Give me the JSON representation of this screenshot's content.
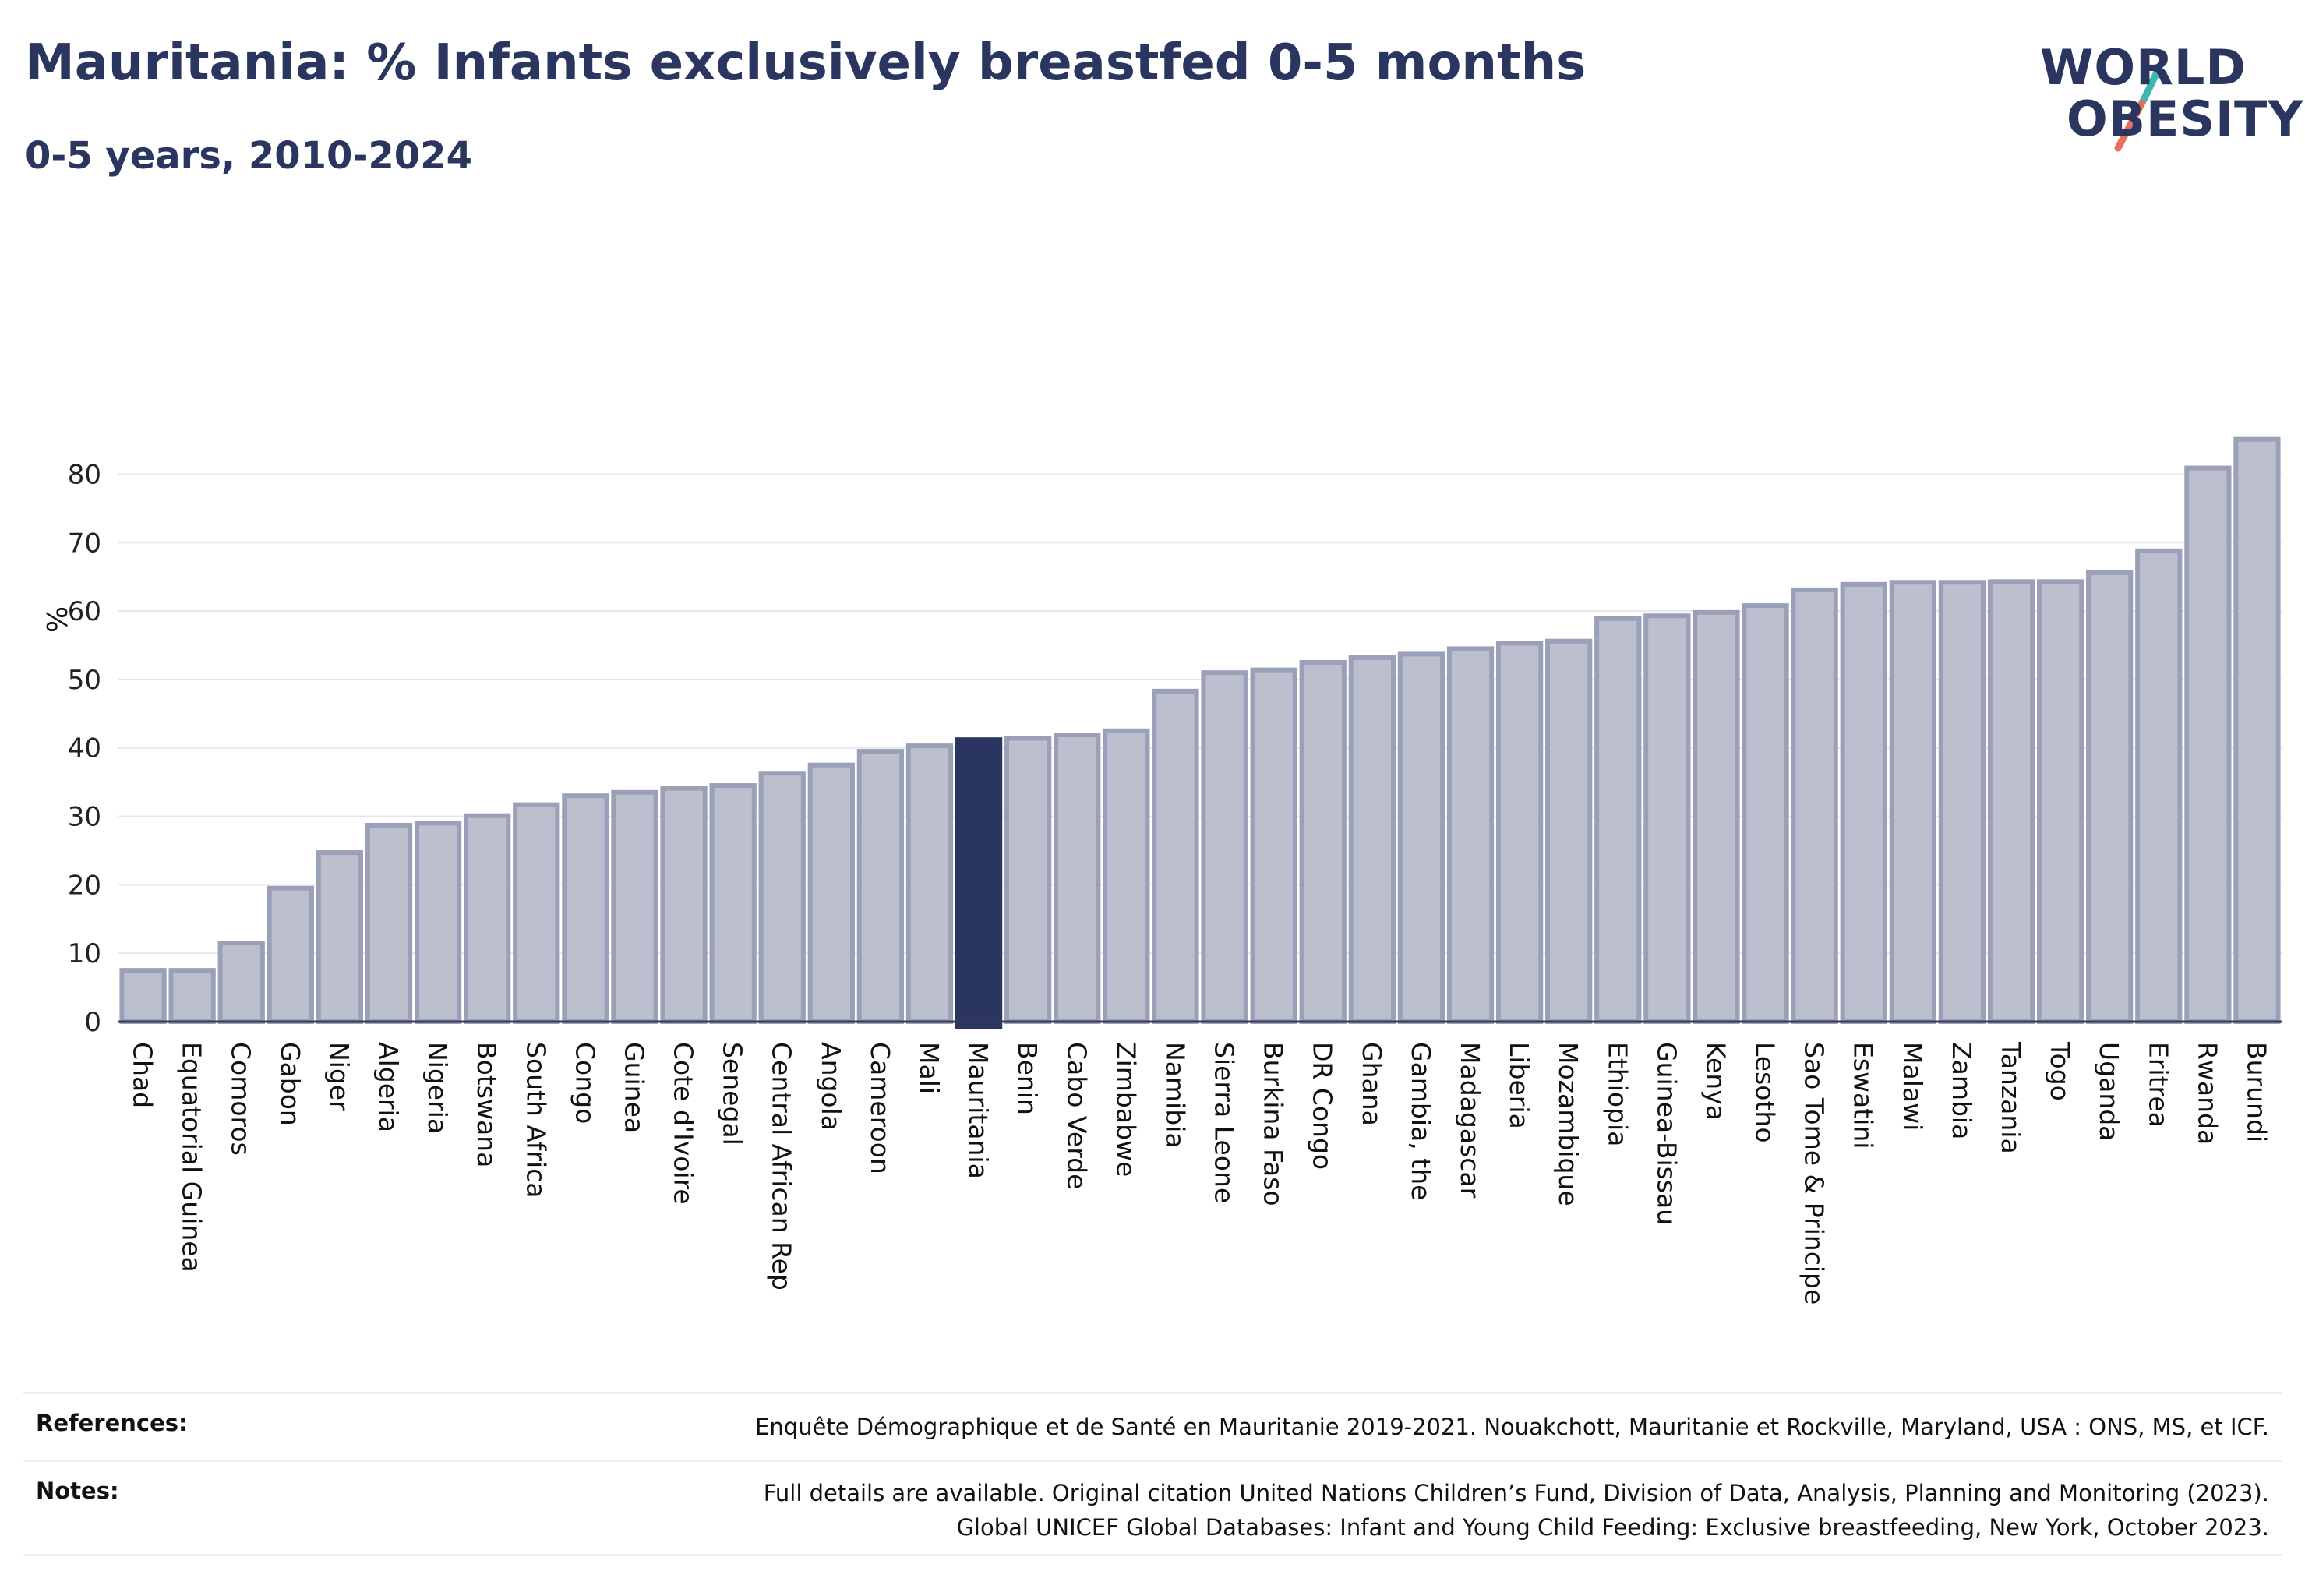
{
  "header": {
    "title": "Mauritania: % Infants exclusively breastfed 0-5 months",
    "subtitle": "0-5 years, 2010-2024"
  },
  "logo": {
    "line1": "WORLD",
    "line2": "OBESITY",
    "colors": {
      "text": "#2a3560",
      "slash_top": "#3fb8b0",
      "slash_bottom": "#e8705a"
    }
  },
  "chart_data": {
    "type": "bar",
    "ylabel": "%",
    "ylim": [
      0,
      87
    ],
    "yticks": [
      0,
      10,
      20,
      30,
      40,
      50,
      60,
      70,
      80
    ],
    "grid": true,
    "highlight": "Mauritania",
    "colors": {
      "bar": "#bcc0ce",
      "bar_edge": "#9aa0b8",
      "highlight": "#2a3560"
    },
    "categories": [
      "Chad",
      "Equatorial Guinea",
      "Comoros",
      "Gabon",
      "Niger",
      "Algeria",
      "Nigeria",
      "Botswana",
      "South Africa",
      "Congo",
      "Guinea",
      "Cote d'Ivoire",
      "Senegal",
      "Central African Rep",
      "Angola",
      "Cameroon",
      "Mali",
      "Mauritania",
      "Benin",
      "Cabo Verde",
      "Zimbabwe",
      "Namibia",
      "Sierra Leone",
      "Burkina Faso",
      "DR Congo",
      "Ghana",
      "Gambia, the",
      "Madagascar",
      "Liberia",
      "Mozambique",
      "Ethiopia",
      "Guinea-Bissau",
      "Kenya",
      "Lesotho",
      "Sao Tome & Principe",
      "Eswatini",
      "Malawi",
      "Zambia",
      "Tanzania",
      "Togo",
      "Uganda",
      "Eritrea",
      "Rwanda",
      "Burundi"
    ],
    "values": [
      7.5,
      7.5,
      11.5,
      19.5,
      24.7,
      28.7,
      29.0,
      30.1,
      31.7,
      33.0,
      33.5,
      34.1,
      34.5,
      36.3,
      37.5,
      39.5,
      40.3,
      41.2,
      41.4,
      41.9,
      42.5,
      48.3,
      51.0,
      51.4,
      52.5,
      53.2,
      53.7,
      54.5,
      55.3,
      55.6,
      58.9,
      59.3,
      59.8,
      60.8,
      63.1,
      63.9,
      64.2,
      64.2,
      64.3,
      64.3,
      65.6,
      68.8,
      80.9,
      85.1
    ]
  },
  "footer": {
    "references_label": "References:",
    "references_text": "Enquête Démographique et de Santé en Mauritanie 2019-2021. Nouakchott, Mauritanie et Rockville, Maryland, USA : ONS, MS, et ICF.",
    "notes_label": "Notes:",
    "notes_line1": "Full details are available. Original citation United Nations Children’s Fund, Division of Data, Analysis, Planning and Monitoring (2023).",
    "notes_line2": "Global UNICEF Global Databases: Infant and Young Child Feeding: Exclusive breastfeeding, New York, October 2023."
  }
}
